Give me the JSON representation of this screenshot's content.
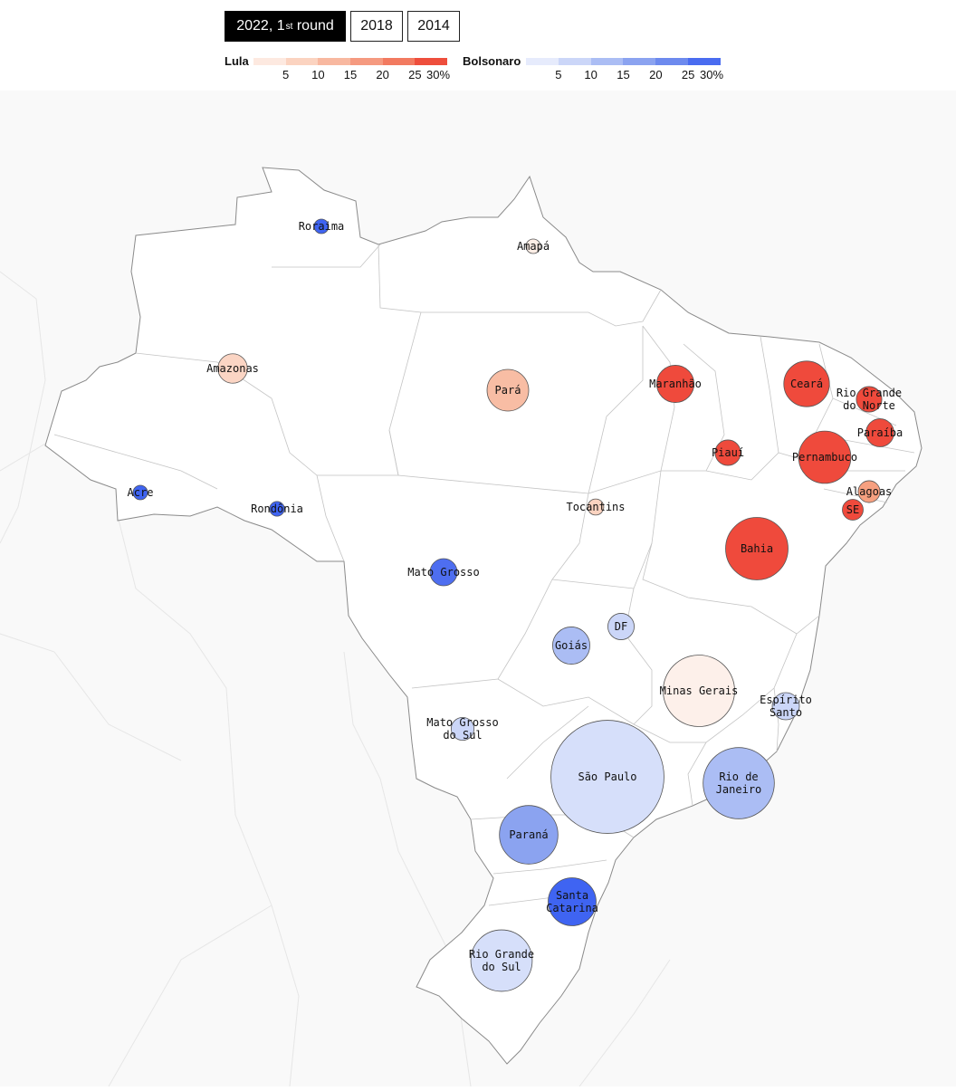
{
  "tabs": [
    {
      "label": "2022, 1",
      "sup": "st",
      "label_after": " round",
      "active": true
    },
    {
      "label": "2018",
      "sup": "",
      "label_after": "",
      "active": false
    },
    {
      "label": "2014",
      "sup": "",
      "label_after": "",
      "active": false
    }
  ],
  "legend": {
    "lula": {
      "title": "Lula",
      "ticks": [
        "5",
        "10",
        "15",
        "20",
        "25",
        "30%"
      ],
      "colors": [
        "#fde9e0",
        "#fbd3c0",
        "#f8b8a0",
        "#f59a80",
        "#f27a60",
        "#ee4e3c"
      ]
    },
    "bolsonaro": {
      "title": "Bolsonaro",
      "ticks": [
        "5",
        "10",
        "15",
        "20",
        "25",
        "30%"
      ],
      "colors": [
        "#e6ebfc",
        "#cbd6f8",
        "#abbdf4",
        "#8ba3f0",
        "#6d8aee",
        "#4a6cf0"
      ]
    }
  },
  "map": {
    "bubble_stroke": "#555555",
    "states": [
      {
        "name": "Roraima",
        "label": [
          "Roraima"
        ],
        "color": "#3f64f2",
        "weight": 0.2
      },
      {
        "name": "Amapá",
        "label": [
          "Amapá"
        ],
        "color": "#fdeee6",
        "weight": 0.3
      },
      {
        "name": "Amazonas",
        "label": [
          "Amazonas"
        ],
        "color": "#fbd5c4",
        "weight": 2.0
      },
      {
        "name": "Pará",
        "label": [
          "Pará"
        ],
        "color": "#f8bda4",
        "weight": 4.0
      },
      {
        "name": "Maranhão",
        "label": [
          "Maranhão"
        ],
        "color": "#ef4a3c",
        "weight": 3.2
      },
      {
        "name": "Ceará",
        "label": [
          "Ceará"
        ],
        "color": "#ef4a3c",
        "weight": 4.8
      },
      {
        "name": "Rio Grande do Norte",
        "label": [
          "Rio Grande",
          "do Norte"
        ],
        "color": "#ef4a3c",
        "weight": 1.5
      },
      {
        "name": "Paraíba",
        "label": [
          "Paraíba"
        ],
        "color": "#ef4a3c",
        "weight": 1.8
      },
      {
        "name": "Piauí",
        "label": [
          "Piauí"
        ],
        "color": "#ef4a3c",
        "weight": 1.5
      },
      {
        "name": "Pernambuco",
        "label": [
          "Pernambuco"
        ],
        "color": "#ef4a3c",
        "weight": 6.3
      },
      {
        "name": "Alagoas",
        "label": [
          "Alagoas"
        ],
        "color": "#f6a080",
        "weight": 1.1
      },
      {
        "name": "SE",
        "label": [
          "SE"
        ],
        "color": "#ef4a3c",
        "weight": 1.0
      },
      {
        "name": "Acre",
        "label": [
          "Acre"
        ],
        "color": "#3f64f2",
        "weight": 0.3
      },
      {
        "name": "Rondônia",
        "label": [
          "Rondônia"
        ],
        "color": "#3f64f2",
        "weight": 0.5
      },
      {
        "name": "Tocantins",
        "label": [
          "Tocantins"
        ],
        "color": "#fbd3c0",
        "weight": 0.6
      },
      {
        "name": "Bahia",
        "label": [
          "Bahia"
        ],
        "color": "#ef4a3c",
        "weight": 9.0
      },
      {
        "name": "Mato Grosso",
        "label": [
          "Mato Grosso"
        ],
        "color": "#4e6ef0",
        "weight": 1.7
      },
      {
        "name": "DF",
        "label": [
          "DF"
        ],
        "color": "#cbd6f8",
        "weight": 1.6
      },
      {
        "name": "Goiás",
        "label": [
          "Goiás"
        ],
        "color": "#abbdf4",
        "weight": 3.2
      },
      {
        "name": "Minas Gerais",
        "label": [
          "Minas Gerais"
        ],
        "color": "#fdf0ea",
        "weight": 11.8
      },
      {
        "name": "Espírito Santo",
        "label": [
          "Espírito",
          "Santo"
        ],
        "color": "#cbd6f8",
        "weight": 1.7
      },
      {
        "name": "Mato Grosso do Sul",
        "label": [
          "Mato Grosso",
          "do Sul"
        ],
        "color": "#cbd6f8",
        "weight": 1.2
      },
      {
        "name": "São Paulo",
        "label": [
          "São Paulo"
        ],
        "color": "#d6dffa",
        "weight": 29.5
      },
      {
        "name": "Rio de Janeiro",
        "label": [
          "Rio de",
          "Janeiro"
        ],
        "color": "#abbdf4",
        "weight": 11.7
      },
      {
        "name": "Paraná",
        "label": [
          "Paraná"
        ],
        "color": "#8ba3f0",
        "weight": 7.9
      },
      {
        "name": "Santa Catarina",
        "label": [
          "Santa",
          "Catarina"
        ],
        "color": "#3f64f2",
        "weight": 5.3
      },
      {
        "name": "Rio Grande do Sul",
        "label": [
          "Rio Grande",
          "do Sul"
        ],
        "color": "#d6dffa",
        "weight": 8.7
      }
    ]
  }
}
